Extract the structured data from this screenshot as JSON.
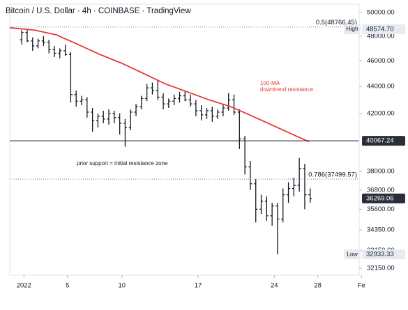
{
  "chart_data": {
    "type": "ohlc",
    "title": "Bitcoin / U.S. Dollar · 4h · COINBASE · TradingView",
    "log": true,
    "color": "#131722",
    "x": [
      0.8,
      1.3,
      1.8,
      2.3,
      2.8,
      3.3,
      3.8,
      4.3,
      4.8,
      5.3,
      5.8,
      6.3,
      6.8,
      7.3,
      7.8,
      8.3,
      8.8,
      9.3,
      9.8,
      10.3,
      10.8,
      11.3,
      11.8,
      12.3,
      12.8,
      13.3,
      13.8,
      14.3,
      14.8,
      15.3,
      15.8,
      16.3,
      16.8,
      17.3,
      17.8,
      18.3,
      18.8,
      19.3,
      19.8,
      20.3,
      20.8,
      21.3,
      21.8,
      22.3,
      22.8,
      23.3,
      23.8,
      24.3,
      24.8,
      25.3,
      25.8,
      26.3,
      26.8,
      27.3
    ],
    "ohlc": [
      [
        47700,
        48500,
        47300,
        48300
      ],
      [
        48300,
        48600,
        47500,
        47600
      ],
      [
        47600,
        47900,
        46800,
        47200
      ],
      [
        47200,
        47800,
        47000,
        47600
      ],
      [
        47600,
        48000,
        47200,
        47500
      ],
      [
        47500,
        47700,
        46600,
        46900
      ],
      [
        46900,
        47200,
        46300,
        46600
      ],
      [
        46600,
        47000,
        46200,
        46800
      ],
      [
        46800,
        47300,
        46400,
        46500
      ],
      [
        46500,
        46700,
        42800,
        43400
      ],
      [
        43400,
        43700,
        42500,
        42900
      ],
      [
        42900,
        43300,
        42600,
        43000
      ],
      [
        43000,
        43200,
        41700,
        42100
      ],
      [
        42100,
        42400,
        40700,
        41500
      ],
      [
        41500,
        42000,
        41000,
        41800
      ],
      [
        41800,
        42200,
        41300,
        41600
      ],
      [
        41600,
        42300,
        41200,
        42000
      ],
      [
        42000,
        42200,
        41300,
        41700
      ],
      [
        41700,
        42000,
        40500,
        41300
      ],
      [
        41300,
        41600,
        39650,
        41000
      ],
      [
        41000,
        42300,
        40800,
        42100
      ],
      [
        42100,
        42700,
        41800,
        42500
      ],
      [
        42500,
        43300,
        42300,
        43100
      ],
      [
        43100,
        44200,
        42900,
        43900
      ],
      [
        43900,
        44300,
        43400,
        43700
      ],
      [
        43700,
        44500,
        43000,
        43200
      ],
      [
        43200,
        43500,
        42300,
        42700
      ],
      [
        42700,
        43100,
        42400,
        42900
      ],
      [
        42900,
        43400,
        42600,
        43100
      ],
      [
        43100,
        43600,
        42800,
        43300
      ],
      [
        43300,
        43700,
        42900,
        43000
      ],
      [
        43000,
        43400,
        42500,
        42700
      ],
      [
        42700,
        43000,
        41800,
        42200
      ],
      [
        42200,
        42600,
        41500,
        41900
      ],
      [
        41900,
        42400,
        41600,
        42200
      ],
      [
        42200,
        42500,
        41400,
        41800
      ],
      [
        41800,
        42300,
        41600,
        42100
      ],
      [
        42100,
        42700,
        41800,
        42400
      ],
      [
        42400,
        43500,
        42200,
        43000
      ],
      [
        43000,
        43400,
        41900,
        42100
      ],
      [
        42100,
        42300,
        39500,
        40200
      ],
      [
        40200,
        40400,
        37800,
        38300
      ],
      [
        38300,
        38700,
        36800,
        37200
      ],
      [
        37200,
        37500,
        34800,
        35600
      ],
      [
        35600,
        36500,
        35300,
        36100
      ],
      [
        36100,
        36400,
        34900,
        35200
      ],
      [
        35200,
        36000,
        34600,
        35800
      ],
      [
        35800,
        36000,
        32933,
        35000
      ],
      [
        35000,
        36900,
        34800,
        36500
      ],
      [
        36500,
        37300,
        36000,
        36900
      ],
      [
        36900,
        37600,
        36400,
        37100
      ],
      [
        37100,
        38900,
        36700,
        38200
      ],
      [
        38200,
        38500,
        35600,
        36500
      ],
      [
        36500,
        36900,
        36000,
        36269
      ]
    ],
    "ma": {
      "color": "#e53935",
      "x": [
        -0.3,
        2,
        4,
        6,
        8,
        10,
        12,
        14,
        16,
        18,
        20,
        22,
        24,
        26,
        27.2
      ],
      "values": [
        48700,
        48500,
        48100,
        47300,
        46500,
        45800,
        45000,
        44200,
        43600,
        43000,
        42500,
        41800,
        41100,
        40400,
        40000
      ]
    },
    "xlim": [
      -0.3,
      31.8
    ],
    "ylim": [
      31770,
      50600
    ],
    "xticks": [
      {
        "value": 1,
        "label": "2022"
      },
      5,
      10,
      17,
      24,
      28,
      {
        "value": 32,
        "label": "Fe"
      }
    ],
    "yticks": [
      {
        "value": 50000,
        "label": "50000.00"
      },
      {
        "value": 48000,
        "label": "48000.00"
      },
      {
        "value": 46000,
        "label": "46000.00"
      },
      {
        "value": 44000,
        "label": "44000.00"
      },
      {
        "value": 42000,
        "label": "42000.00"
      },
      {
        "value": 38000,
        "label": "38000.00"
      },
      {
        "value": 36800,
        "label": "36800.00"
      },
      {
        "value": 35600,
        "label": "35600.00"
      },
      {
        "value": 34350,
        "label": "34350.00"
      },
      {
        "value": 33150,
        "label": "33150.00"
      },
      {
        "value": 32150,
        "label": "32150.00"
      }
    ],
    "levels": [
      {
        "label": "0.5(48766.45)",
        "value": 48766.45
      },
      {
        "label": "0.786(37499.57)",
        "value": 37499.57
      }
    ],
    "price_labels": [
      {
        "name": "High",
        "value": 48574.7,
        "label": "48574.70"
      },
      {
        "value": 40067.24,
        "label": "40067.24",
        "line": "solid"
      },
      {
        "value": 36269.06,
        "label": "36269.06"
      },
      {
        "name": "Low",
        "value": 32933.33,
        "label": "32933.33"
      }
    ],
    "annotations": [
      "100-MA",
      "downtrend resistance",
      "prior support  = initial resistance zone"
    ]
  }
}
